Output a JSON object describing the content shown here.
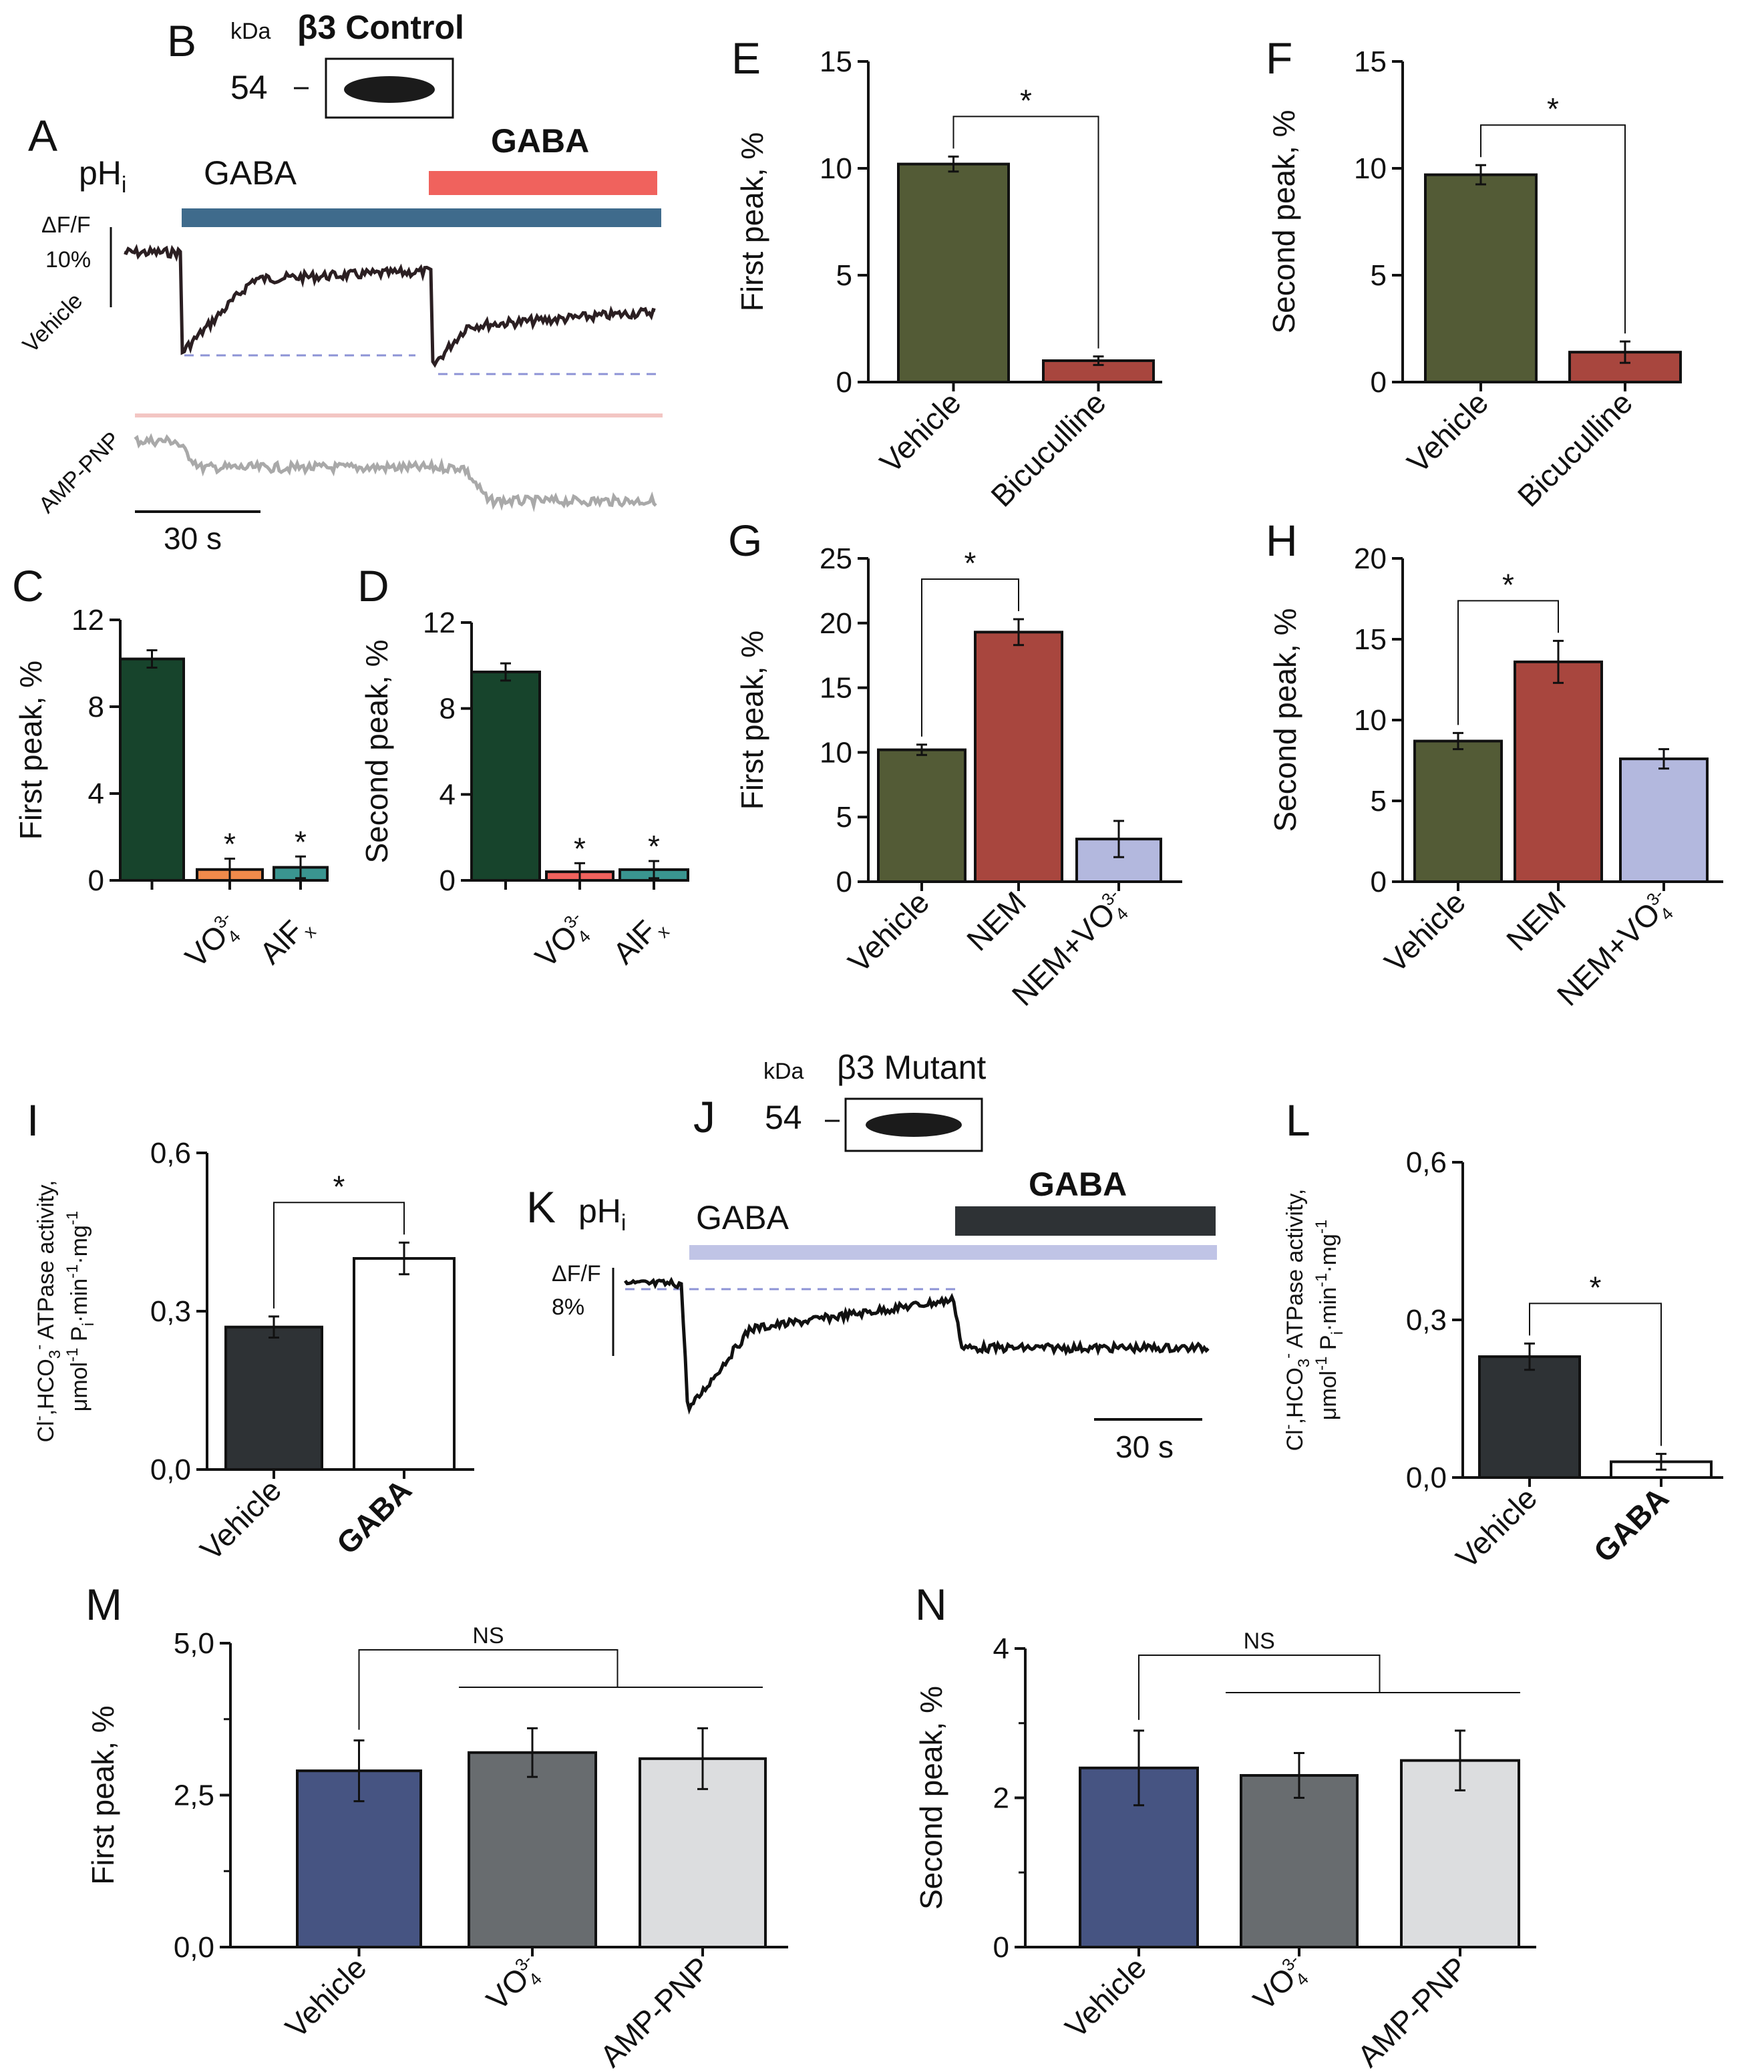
{
  "figure": {
    "panels": {
      "A": {
        "letter": "A",
        "signal_label": "pH",
        "signal_sub": "i",
        "agonist_1": "GABA",
        "agonist_2": "GABA",
        "scale_label_1": "ΔF/F",
        "scale_label_2": "10%",
        "trace_1_label": "Vehicle",
        "trace_2_label": "AMP-PNP",
        "time_scale": "30 s",
        "colors": {
          "bar_1": "#3f6b8c",
          "bar_2": "#f0625d",
          "trace_1": "#2b1f22",
          "trace_2": "#a9a9a9",
          "baseline": "#8d93d6"
        }
      },
      "B": {
        "letter": "B",
        "unit": "kDa",
        "protein": "β3 Control",
        "marker": "54"
      },
      "J": {
        "letter": "J",
        "unit": "kDa",
        "protein": "β3 Mutant",
        "marker": "54"
      },
      "K": {
        "letter": "K",
        "signal_label": "pH",
        "signal_sub": "i",
        "agonist_1": "GABA",
        "agonist_2": "GABA",
        "scale_label_1": "ΔF/F",
        "scale_label_2": "8%",
        "time_scale": "30 s",
        "colors": {
          "bar_1": "#c0c4e6",
          "bar_2": "#2e3235",
          "trace": "#111111",
          "baseline": "#8d93d6"
        }
      }
    }
  },
  "chart_data": [
    {
      "id": "C",
      "type": "bar",
      "title": "",
      "ylabel": "First peak, %",
      "ylim": [
        0,
        12
      ],
      "yticks": [
        "0",
        "4",
        "8",
        "12"
      ],
      "categories": [
        {
          "base": "",
          "sup": "",
          "sub": ""
        },
        {
          "base": "VO",
          "sup": "3-",
          "sub": "4"
        },
        {
          "base": "AlF",
          "sup": "",
          "sub": "x"
        }
      ],
      "values": [
        10.2,
        0.5,
        0.6
      ],
      "errors": [
        0.4,
        0.5,
        0.5
      ],
      "colors": [
        "#17442c",
        "#f08a4b",
        "#3a9590"
      ],
      "annotations": [
        {
          "type": "star",
          "index": 1,
          "text": "*"
        },
        {
          "type": "star",
          "index": 2,
          "text": "*"
        }
      ]
    },
    {
      "id": "D",
      "type": "bar",
      "title": "",
      "ylabel": "Second peak, %",
      "ylim": [
        0,
        12
      ],
      "yticks": [
        "0",
        "4",
        "8",
        "12"
      ],
      "categories": [
        {
          "base": "",
          "sup": "",
          "sub": ""
        },
        {
          "base": "VO",
          "sup": "3-",
          "sub": "4"
        },
        {
          "base": "AlF",
          "sup": "",
          "sub": "x"
        }
      ],
      "values": [
        9.7,
        0.4,
        0.5
      ],
      "errors": [
        0.4,
        0.4,
        0.4
      ],
      "colors": [
        "#17442c",
        "#f0625d",
        "#3a9590"
      ],
      "annotations": [
        {
          "type": "star",
          "index": 1,
          "text": "*"
        },
        {
          "type": "star",
          "index": 2,
          "text": "*"
        }
      ]
    },
    {
      "id": "E",
      "type": "bar",
      "title": "",
      "ylabel": "First peak, %",
      "ylim": [
        0,
        15
      ],
      "yticks": [
        "0",
        "5",
        "10",
        "15"
      ],
      "categories": [
        {
          "base": "Vehicle",
          "sup": "",
          "sub": ""
        },
        {
          "base": "Bicuculline",
          "sup": "",
          "sub": ""
        }
      ],
      "values": [
        10.2,
        1.0
      ],
      "errors": [
        0.35,
        0.2
      ],
      "colors": [
        "#535b36",
        "#a8463e"
      ],
      "annotations": [
        {
          "type": "bracket",
          "from": 0,
          "to": 1,
          "text": "*"
        }
      ]
    },
    {
      "id": "F",
      "type": "bar",
      "title": "",
      "ylabel": "Second peak, %",
      "ylim": [
        0,
        15
      ],
      "yticks": [
        "0",
        "5",
        "10",
        "15"
      ],
      "categories": [
        {
          "base": "Vehicle",
          "sup": "",
          "sub": ""
        },
        {
          "base": "Bicuculline",
          "sup": "",
          "sub": ""
        }
      ],
      "values": [
        9.7,
        1.4
      ],
      "errors": [
        0.45,
        0.5
      ],
      "colors": [
        "#535b36",
        "#a8463e"
      ],
      "annotations": [
        {
          "type": "bracket",
          "from": 0,
          "to": 1,
          "text": "*"
        }
      ]
    },
    {
      "id": "G",
      "type": "bar",
      "title": "",
      "ylabel": "First peak, %",
      "ylim": [
        0,
        25
      ],
      "yticks": [
        "0",
        "5",
        "10",
        "15",
        "20",
        "25"
      ],
      "categories": [
        {
          "base": "Vehicle",
          "sup": "",
          "sub": ""
        },
        {
          "base": "NEM",
          "sup": "",
          "sub": ""
        },
        {
          "base": "NEM+VO",
          "sup": "3-",
          "sub": "4"
        }
      ],
      "values": [
        10.2,
        19.3,
        3.3
      ],
      "errors": [
        0.4,
        1.0,
        1.4
      ],
      "colors": [
        "#535b36",
        "#a8463e",
        "#b3b8de"
      ],
      "annotations": [
        {
          "type": "bracket",
          "from": 0,
          "to": 1,
          "text": "*"
        }
      ]
    },
    {
      "id": "H",
      "type": "bar",
      "title": "",
      "ylabel": "Second peak, %",
      "ylim": [
        0,
        20
      ],
      "yticks": [
        "0",
        "5",
        "10",
        "15",
        "20"
      ],
      "categories": [
        {
          "base": "Vehicle",
          "sup": "",
          "sub": ""
        },
        {
          "base": "NEM",
          "sup": "",
          "sub": ""
        },
        {
          "base": "NEM+VO",
          "sup": "3-",
          "sub": "4"
        }
      ],
      "values": [
        8.7,
        13.6,
        7.6
      ],
      "errors": [
        0.5,
        1.3,
        0.6
      ],
      "colors": [
        "#535b36",
        "#a8463e",
        "#b3b8de"
      ],
      "annotations": [
        {
          "type": "bracket",
          "from": 0,
          "to": 1,
          "text": "*"
        }
      ]
    },
    {
      "id": "I",
      "type": "bar",
      "title": "",
      "ylim": [
        0,
        0.6
      ],
      "yticks": [
        "0,0",
        "0,3",
        "0,6"
      ],
      "ylabel_parts": [
        "Cl",
        "-",
        ",HCO",
        "3",
        "-",
        " ATPase activity,",
        "μmol",
        "-1",
        " P",
        "i",
        "·min",
        "-1",
        "·mg",
        "-1"
      ],
      "categories": [
        {
          "base": "Vehicle",
          "sup": "",
          "sub": ""
        },
        {
          "base": "GABA",
          "sup": "",
          "sub": "",
          "bold": true
        }
      ],
      "values": [
        0.27,
        0.4
      ],
      "errors": [
        0.02,
        0.03
      ],
      "colors": [
        "#2e3235",
        "#ffffff"
      ],
      "annotations": [
        {
          "type": "bracket",
          "from": 0,
          "to": 1,
          "text": "*"
        }
      ]
    },
    {
      "id": "L",
      "type": "bar",
      "title": "",
      "ylim": [
        0,
        0.6
      ],
      "yticks": [
        "0,0",
        "0,3",
        "0,6"
      ],
      "ylabel_parts": [
        "Cl",
        "-",
        ",HCO",
        "3",
        "-",
        " ATPase activity,",
        "μmol",
        "-1",
        " P",
        "i",
        "·min",
        "-1",
        "·mg",
        "-1"
      ],
      "categories": [
        {
          "base": "Vehicle",
          "sup": "",
          "sub": ""
        },
        {
          "base": "GABA",
          "sup": "",
          "sub": "",
          "bold": true
        }
      ],
      "values": [
        0.23,
        0.03
      ],
      "errors": [
        0.025,
        0.015
      ],
      "colors": [
        "#2e3235",
        "#ffffff"
      ],
      "annotations": [
        {
          "type": "bracket",
          "from": 0,
          "to": 1,
          "text": "*",
          "drop_to": "error_top"
        }
      ]
    },
    {
      "id": "M",
      "type": "bar",
      "title": "",
      "ylabel": "First peak, %",
      "ylim": [
        0,
        5
      ],
      "yticks": [
        "0,0",
        "2,5",
        "5,0"
      ],
      "minor_ticks": [
        1.25,
        3.75
      ],
      "categories": [
        {
          "base": "Vehicle",
          "sup": "",
          "sub": ""
        },
        {
          "base": "VO",
          "sup": "3-",
          "sub": "4"
        },
        {
          "base": "AMP-PNP",
          "sup": "",
          "sub": ""
        }
      ],
      "values": [
        2.9,
        3.2,
        3.1
      ],
      "errors": [
        0.5,
        0.4,
        0.5
      ],
      "colors": [
        "#465482",
        "#686c6f",
        "#dcdddf"
      ],
      "annotations": [
        {
          "type": "ns",
          "text": "NS"
        }
      ]
    },
    {
      "id": "N",
      "type": "bar",
      "title": "",
      "ylabel": "Second peak, %",
      "ylim": [
        0,
        4
      ],
      "yticks": [
        "0",
        "2",
        "4"
      ],
      "minor_ticks": [
        1,
        3
      ],
      "categories": [
        {
          "base": "Vehicle",
          "sup": "",
          "sub": ""
        },
        {
          "base": "VO",
          "sup": "3-",
          "sub": "4"
        },
        {
          "base": "AMP-PNP",
          "sup": "",
          "sub": ""
        }
      ],
      "values": [
        2.4,
        2.3,
        2.5
      ],
      "errors": [
        0.5,
        0.3,
        0.4
      ],
      "colors": [
        "#465482",
        "#686c6f",
        "#dcdddf"
      ],
      "annotations": [
        {
          "type": "ns",
          "text": "NS"
        }
      ]
    }
  ]
}
